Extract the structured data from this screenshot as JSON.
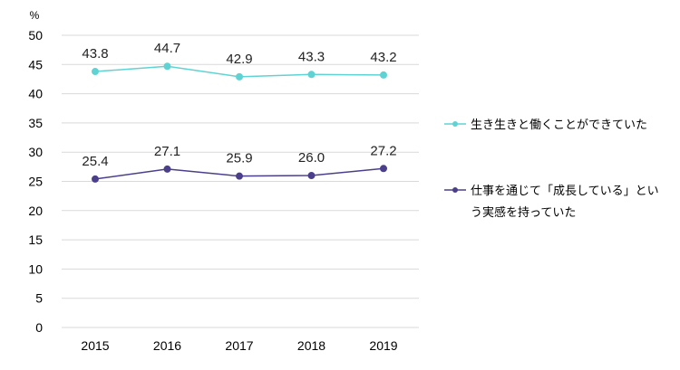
{
  "chart_data": {
    "type": "line",
    "unit": "%",
    "x": [
      "2015",
      "2016",
      "2017",
      "2018",
      "2019"
    ],
    "ylim": [
      0,
      50
    ],
    "yticks": [
      "0",
      "5",
      "10",
      "15",
      "20",
      "25",
      "30",
      "35",
      "40",
      "45",
      "50"
    ],
    "grid": true,
    "legend_position": "right",
    "series": [
      {
        "name": "生き生きと働くことができていた",
        "values": [
          43.8,
          44.7,
          42.9,
          43.3,
          43.2
        ],
        "labels": [
          "43.8",
          "44.7",
          "42.9",
          "43.3",
          "43.2"
        ],
        "color": "#5fd3d3"
      },
      {
        "name": "仕事を通じて「成長している」という実感を持っていた",
        "name_lines": [
          "仕事を通じて「成長している」とい",
          "う実感を持っていた"
        ],
        "values": [
          25.4,
          27.1,
          25.9,
          26.0,
          27.2
        ],
        "labels": [
          "25.4",
          "27.1",
          "25.9",
          "26.0",
          "27.2"
        ],
        "color": "#4b3f8c"
      }
    ]
  }
}
